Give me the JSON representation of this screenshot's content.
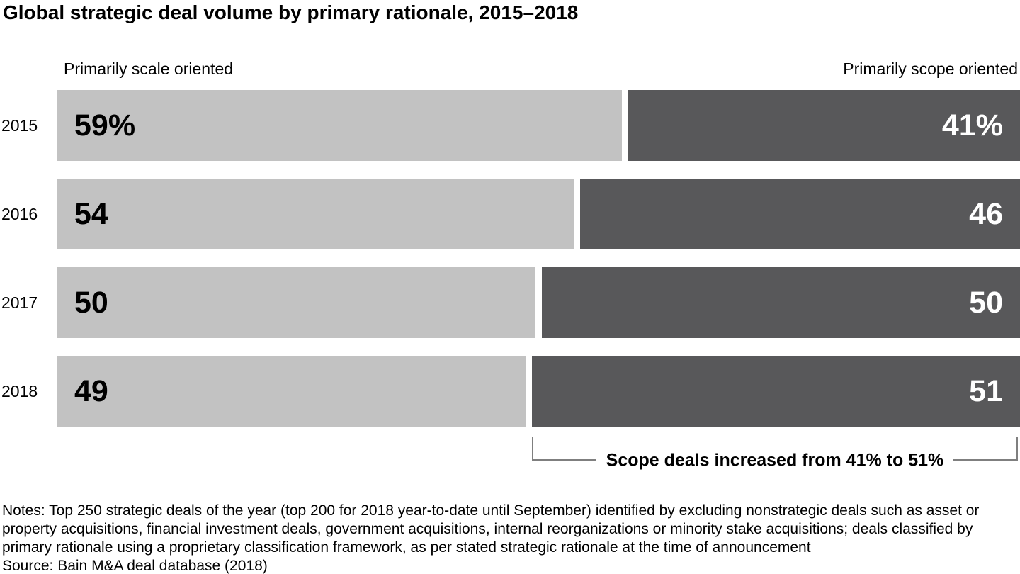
{
  "title": "Global strategic deal volume by primary rationale, 2015–2018",
  "legend": {
    "left": "Primarily scale oriented",
    "right": "Primarily scope oriented"
  },
  "chart_data": {
    "type": "bar",
    "orientation": "horizontal-stacked",
    "title": "Global strategic deal volume by primary rationale, 2015–2018",
    "categories": [
      "2015",
      "2016",
      "2017",
      "2018"
    ],
    "series": [
      {
        "name": "Primarily scale oriented",
        "color": "#c2c2c2",
        "values": [
          59,
          54,
          50,
          49
        ],
        "labels": [
          "59%",
          "54",
          "50",
          "49"
        ]
      },
      {
        "name": "Primarily scope oriented",
        "color": "#58585a",
        "values": [
          41,
          46,
          50,
          51
        ],
        "labels": [
          "41%",
          "46",
          "50",
          "51"
        ]
      }
    ],
    "xlim": [
      0,
      100
    ],
    "unit": "percent",
    "legend_position": "top",
    "grid": false,
    "annotation": "Scope deals increased from 41% to 51%"
  },
  "annotation": {
    "text": "Scope deals increased from 41% to 51%",
    "line_color": "#7f7f7f"
  },
  "notes": "Notes: Top 250 strategic deals of the year (top 200 for 2018 year-to-date until September) identified by excluding nonstrategic deals such as asset or property acquisitions, financial investment deals, government acquisitions, internal reorganizations or minority stake acquisitions; deals classified by primary rationale using a proprietary classification framework, as per stated strategic rationale at the time of announcement",
  "source": "Source: Bain M&A deal database (2018)"
}
